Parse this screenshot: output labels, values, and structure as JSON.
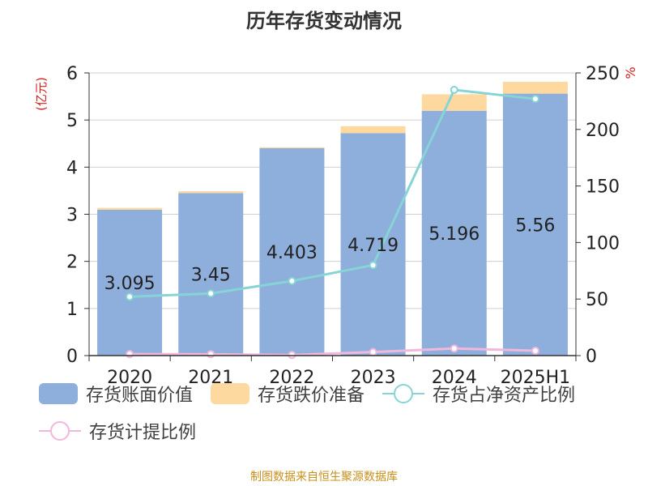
{
  "chart_data": {
    "type": "bar",
    "title": "历年存货变动情况",
    "categories": [
      "2020",
      "2021",
      "2022",
      "2023",
      "2024",
      "2025H1"
    ],
    "y_left": {
      "label": "(亿元)",
      "ylim": [
        0,
        6
      ],
      "ticks": [
        "0",
        "1",
        "2",
        "3",
        "4",
        "5",
        "6"
      ]
    },
    "y_right": {
      "label": "%",
      "ylim": [
        0,
        250
      ],
      "ticks": [
        "0",
        "50",
        "100",
        "150",
        "200",
        "250"
      ]
    },
    "series": [
      {
        "name": "存货账面价值",
        "type": "bar",
        "stack": "inv",
        "axis": "left",
        "values": [
          3.095,
          3.45,
          4.403,
          4.719,
          5.196,
          5.56
        ],
        "labels": [
          "3.095",
          "3.45",
          "4.403",
          "4.719",
          "5.196",
          "5.56"
        ]
      },
      {
        "name": "存货跌价准备",
        "type": "bar",
        "stack": "inv",
        "axis": "left",
        "values": [
          0.04,
          0.04,
          0.02,
          0.15,
          0.35,
          0.25
        ]
      },
      {
        "name": "存货占净资产比例",
        "type": "line",
        "axis": "right",
        "values": [
          52,
          55,
          66,
          80,
          235,
          227
        ]
      },
      {
        "name": "存货计提比例",
        "type": "line",
        "axis": "right",
        "values": [
          1.3,
          1.2,
          0.5,
          3.1,
          6.3,
          4.3
        ]
      }
    ],
    "colors": {
      "book": "#8eaedb",
      "provision": "#fdd9a0",
      "ratio_net": "#86d4d6",
      "ratio_prov": "#f0b8dc",
      "axis_title_left": "#d41f1f",
      "axis_title_right": "#d41f1f"
    },
    "grid": true,
    "legend_position": "bottom"
  },
  "source_text": "制图数据来自恒生聚源数据库"
}
